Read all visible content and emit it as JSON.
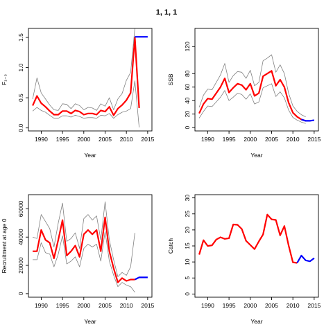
{
  "page": {
    "title": "1, 1, 1"
  },
  "colors": {
    "estimate": "#ff0000",
    "forecast": "#0000ff",
    "ci": "#808080"
  },
  "chart_data": [
    {
      "type": "line",
      "xlabel": "Year",
      "ylabel": "F₁₋₃",
      "xlim": [
        1987,
        2016
      ],
      "ylim": [
        -0.05,
        1.65
      ],
      "xticks": [
        1990,
        1995,
        2000,
        2005,
        2010,
        2015
      ],
      "yticks": [
        0.0,
        0.5,
        1.0,
        1.5
      ],
      "ytick_labels": [
        "0.0",
        "0.5",
        "1.0",
        "1.5"
      ],
      "series": [
        {
          "role": "estimate",
          "x": [
            1988,
            1989,
            1990,
            1991,
            1992,
            1993,
            1994,
            1995,
            1996,
            1997,
            1998,
            1999,
            2000,
            2001,
            2002,
            2003,
            2004,
            2005,
            2006,
            2007,
            2008,
            2009,
            2010,
            2011,
            2012,
            2013
          ],
          "values": [
            0.37,
            0.53,
            0.41,
            0.35,
            0.28,
            0.22,
            0.22,
            0.28,
            0.28,
            0.24,
            0.29,
            0.27,
            0.22,
            0.24,
            0.24,
            0.22,
            0.29,
            0.27,
            0.35,
            0.21,
            0.32,
            0.38,
            0.46,
            0.58,
            1.5,
            0.33
          ]
        },
        {
          "role": "upper",
          "x": [
            1988,
            1989,
            1990,
            1991,
            1992,
            1993,
            1994,
            1995,
            1996,
            1997,
            1998,
            1999,
            2000,
            2001,
            2002,
            2003,
            2004,
            2005,
            2006,
            2007,
            2008,
            2009,
            2010,
            2011,
            2012
          ],
          "values": [
            0.48,
            0.83,
            0.58,
            0.48,
            0.38,
            0.3,
            0.29,
            0.4,
            0.39,
            0.32,
            0.4,
            0.37,
            0.3,
            0.34,
            0.33,
            0.29,
            0.4,
            0.36,
            0.5,
            0.3,
            0.48,
            0.57,
            0.79,
            0.92,
            1.65
          ]
        },
        {
          "role": "lower",
          "x": [
            1988,
            1989,
            1990,
            1991,
            1992,
            1993,
            1994,
            1995,
            1996,
            1997,
            1998,
            1999,
            2000,
            2001,
            2002,
            2003,
            2004,
            2005,
            2006,
            2007,
            2008,
            2009,
            2010,
            2011,
            2012,
            2013
          ],
          "values": [
            0.28,
            0.34,
            0.29,
            0.26,
            0.21,
            0.16,
            0.16,
            0.2,
            0.2,
            0.18,
            0.21,
            0.19,
            0.16,
            0.17,
            0.17,
            0.16,
            0.21,
            0.2,
            0.24,
            0.16,
            0.22,
            0.26,
            0.28,
            0.32,
            0.78,
            0.01
          ]
        },
        {
          "role": "forecast",
          "x": [
            2012,
            2013,
            2014,
            2015
          ],
          "values": [
            1.51,
            1.51,
            1.51,
            1.51
          ]
        }
      ]
    },
    {
      "type": "line",
      "xlabel": "Year",
      "ylabel": "SSB",
      "xlim": [
        1987,
        2016
      ],
      "ylim": [
        -5,
        147
      ],
      "xticks": [
        1990,
        1995,
        2000,
        2005,
        2010,
        2015
      ],
      "yticks": [
        0,
        20,
        40,
        60,
        80,
        120
      ],
      "ytick_labels": [
        "0",
        "20",
        "40",
        "60",
        "80",
        "120"
      ],
      "series": [
        {
          "role": "estimate",
          "x": [
            1988,
            1989,
            1990,
            1991,
            1992,
            1993,
            1994,
            1995,
            1996,
            1997,
            1998,
            1999,
            2000,
            2001,
            2002,
            2003,
            2004,
            2005,
            2006,
            2007,
            2008,
            2009,
            2010,
            2011,
            2012,
            2013
          ],
          "values": [
            21,
            35,
            43,
            42,
            51,
            60,
            73,
            52,
            59,
            65,
            63,
            56,
            65,
            47,
            51,
            76,
            80,
            84,
            62,
            71,
            60,
            37,
            22,
            16,
            12,
            10
          ]
        },
        {
          "role": "upper",
          "x": [
            1988,
            1989,
            1990,
            1991,
            1992,
            1993,
            1994,
            1995,
            1996,
            1997,
            1998,
            1999,
            2000,
            2001,
            2002,
            2003,
            2004,
            2005,
            2006,
            2007,
            2008,
            2009,
            2010,
            2011,
            2012,
            2013
          ],
          "values": [
            30,
            48,
            57,
            56,
            67,
            78,
            95,
            67,
            77,
            83,
            82,
            73,
            85,
            62,
            67,
            99,
            103,
            108,
            82,
            93,
            80,
            51,
            32,
            24,
            19,
            16
          ]
        },
        {
          "role": "lower",
          "x": [
            1988,
            1989,
            1990,
            1991,
            1992,
            1993,
            1994,
            1995,
            1996,
            1997,
            1998,
            1999,
            2000,
            2001,
            2002,
            2003,
            2004,
            2005,
            2006,
            2007,
            2008,
            2009,
            2010,
            2011,
            2012,
            2013
          ],
          "values": [
            14,
            24,
            32,
            31,
            38,
            45,
            55,
            40,
            45,
            51,
            49,
            42,
            50,
            35,
            38,
            59,
            62,
            65,
            46,
            53,
            44,
            26,
            15,
            11,
            8,
            6
          ]
        },
        {
          "role": "forecast",
          "x": [
            2012,
            2013,
            2014,
            2015
          ],
          "values": [
            12,
            10,
            10,
            11
          ]
        }
      ]
    },
    {
      "type": "line",
      "xlabel": "Year",
      "ylabel": "Recruitment at age 0",
      "xlim": [
        1987,
        2016
      ],
      "ylim": [
        -2500,
        70000
      ],
      "xticks": [
        1990,
        1995,
        2000,
        2005,
        2010,
        2015
      ],
      "yticks": [
        0,
        20000,
        40000,
        60000
      ],
      "ytick_labels": [
        "0",
        "20000",
        "40000",
        "60000"
      ],
      "series": [
        {
          "role": "estimate",
          "x": [
            1988,
            1989,
            1990,
            1991,
            1992,
            1993,
            1994,
            1995,
            1996,
            1997,
            1998,
            1999,
            2000,
            2001,
            2002,
            2003,
            2004,
            2005,
            2006,
            2007,
            2008,
            2009,
            2010,
            2011,
            2012
          ],
          "values": [
            30000,
            30000,
            45000,
            38000,
            36000,
            25000,
            38000,
            52000,
            27000,
            30000,
            34000,
            26000,
            42000,
            45000,
            42000,
            45000,
            30000,
            54000,
            30000,
            18000,
            8000,
            11000,
            9000,
            10000,
            10000
          ]
        },
        {
          "role": "upper",
          "x": [
            1988,
            1989,
            1990,
            1991,
            1992,
            1993,
            1994,
            1995,
            1996,
            1997,
            1998,
            1999,
            2000,
            2001,
            2002,
            2003,
            2004,
            2005,
            2006,
            2007,
            2008,
            2009,
            2010,
            2011,
            2012
          ],
          "values": [
            40000,
            39000,
            56000,
            51000,
            46000,
            33000,
            50000,
            64000,
            37000,
            39000,
            43000,
            32000,
            53000,
            56000,
            52000,
            55000,
            38000,
            65000,
            38000,
            24000,
            12000,
            15000,
            13000,
            19000,
            43000
          ]
        },
        {
          "role": "lower",
          "x": [
            1988,
            1989,
            1990,
            1991,
            1992,
            1993,
            1994,
            1995,
            1996,
            1997,
            1998,
            1999,
            2000,
            2001,
            2002,
            2003,
            2004,
            2005,
            2006,
            2007,
            2008,
            2009,
            2010,
            2011,
            2012
          ],
          "values": [
            24000,
            24000,
            36000,
            29000,
            28000,
            19000,
            28000,
            41000,
            21000,
            23000,
            26000,
            19000,
            32000,
            35000,
            33000,
            35000,
            23000,
            44000,
            23000,
            13000,
            5000,
            8000,
            6000,
            5000,
            1000
          ]
        },
        {
          "role": "forecast",
          "x": [
            2012,
            2013,
            2014,
            2015
          ],
          "values": [
            10000,
            11500,
            11500,
            11500
          ]
        }
      ]
    },
    {
      "type": "line",
      "xlabel": "Year",
      "ylabel": "Catch",
      "xlim": [
        1987,
        2016
      ],
      "ylim": [
        -1,
        31
      ],
      "xticks": [
        1990,
        1995,
        2000,
        2005,
        2010,
        2015
      ],
      "yticks": [
        0,
        5,
        10,
        15,
        20,
        25,
        30
      ],
      "ytick_labels": [
        "0",
        "5",
        "10",
        "15",
        "20",
        "25",
        "30"
      ],
      "series": [
        {
          "role": "estimate",
          "x": [
            1988,
            1989,
            1990,
            1991,
            1992,
            1993,
            1994,
            1995,
            1996,
            1997,
            1998,
            1999,
            2000,
            2001,
            2002,
            2003,
            2004,
            2005,
            2006,
            2007,
            2008,
            2009,
            2010,
            2011
          ],
          "values": [
            12.3,
            16.8,
            15.0,
            15.2,
            17.0,
            17.7,
            17.2,
            17.4,
            21.7,
            21.6,
            20.3,
            16.6,
            15.3,
            14.0,
            16.4,
            18.6,
            24.8,
            23.3,
            23.1,
            18.3,
            21.2,
            15.2,
            9.9,
            9.7
          ]
        },
        {
          "role": "forecast",
          "x": [
            2011,
            2012,
            2013,
            2014,
            2015
          ],
          "values": [
            9.7,
            12.0,
            10.5,
            10.2,
            11.2
          ]
        }
      ]
    }
  ]
}
